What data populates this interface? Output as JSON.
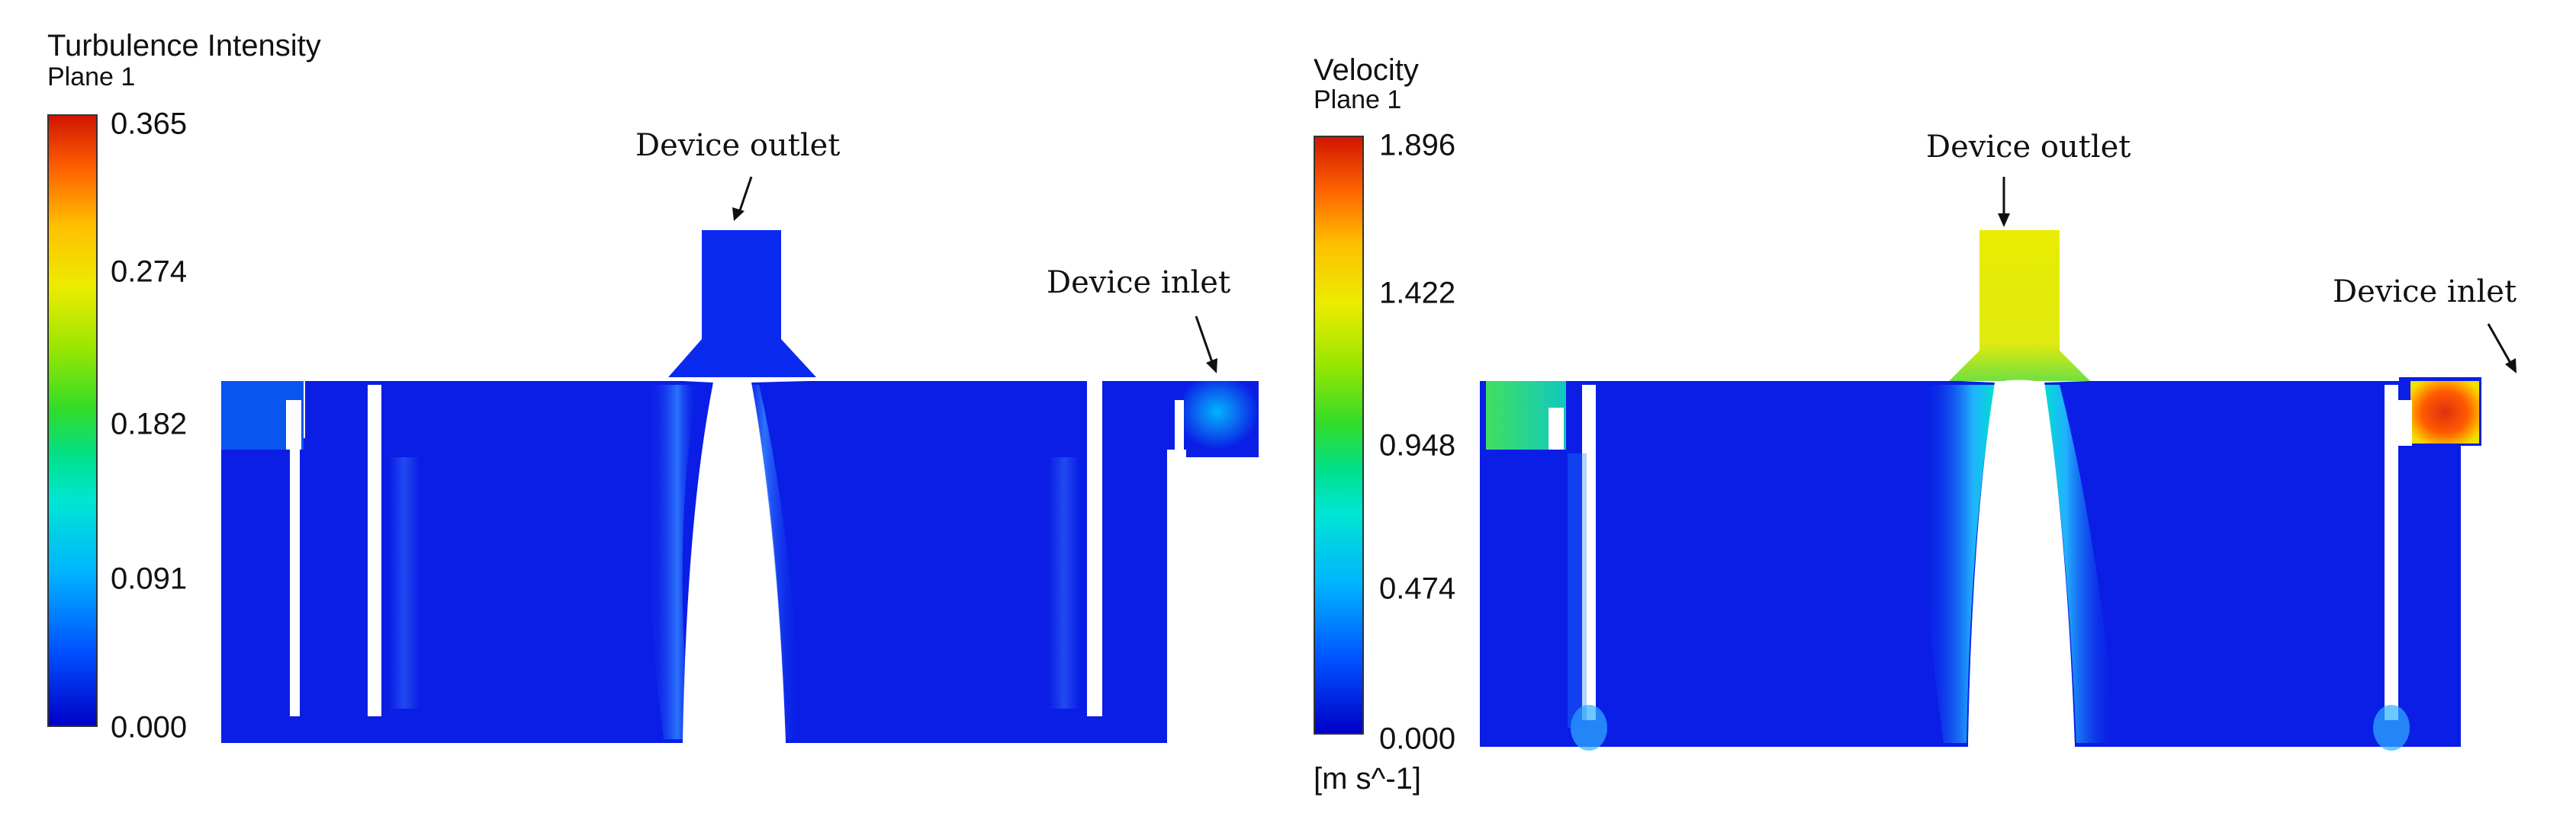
{
  "left_panel": {
    "legend": {
      "title": "Turbulence Intensity",
      "subtitle": "Plane 1",
      "ticks": [
        "0.365",
        "0.274",
        "0.182",
        "0.091",
        "0.000"
      ]
    },
    "callouts": {
      "outlet": "Device outlet",
      "inlet": "Device inlet"
    }
  },
  "right_panel": {
    "legend": {
      "title": "Velocity",
      "subtitle": "Plane 1",
      "ticks": [
        "1.896",
        "1.422",
        "0.948",
        "0.474",
        "0.000"
      ],
      "units": "[m s^-1]"
    },
    "callouts": {
      "outlet": "Device outlet",
      "inlet": "Device inlet"
    }
  },
  "colors": {
    "background_field": "#0a1ee6",
    "low": "#0000c8",
    "mid": "#00e08c",
    "high": "#d21400"
  }
}
